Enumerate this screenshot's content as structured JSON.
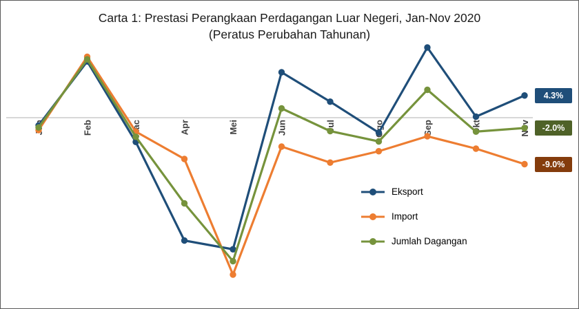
{
  "title": {
    "line1": "Carta 1: Prestasi Perangkaan Perdagangan Luar Negeri, Jan-Nov 2020",
    "line2": "(Peratus Perubahan Tahunan)"
  },
  "legend": {
    "items": [
      {
        "label": "Eksport"
      },
      {
        "label": "Import"
      },
      {
        "label": "Jumlah Dagangan"
      }
    ]
  },
  "end_labels": [
    {
      "text": "4.3%",
      "color": "#1F4E79"
    },
    {
      "text": "-2.0%",
      "color": "#4F6228"
    },
    {
      "text": "-9.0%",
      "color": "#843C0C"
    }
  ],
  "chart_data": {
    "type": "line",
    "title": "Carta 1: Prestasi Perangkaan Perdagangan Luar Negeri, Jan-Nov 2020 (Peratus Perubahan Tahunan)",
    "categories": [
      "Jan",
      "Feb",
      "Mac",
      "Apr",
      "Mei",
      "Jun",
      "Jul",
      "Ogo",
      "Sep",
      "Okt",
      "Nov"
    ],
    "series": [
      {
        "name": "Eksport",
        "color": "#1F4E79",
        "values": [
          -1.5,
          10.9,
          -4.7,
          -23.8,
          -25.5,
          8.8,
          3.1,
          -2.9,
          13.6,
          0.2,
          4.3
        ]
      },
      {
        "name": "Import",
        "color": "#ED7D31",
        "values": [
          -2.4,
          11.8,
          -2.7,
          -8.0,
          -30.4,
          -5.6,
          -8.7,
          -6.5,
          -3.6,
          -6.0,
          -9.0
        ]
      },
      {
        "name": "Jumlah Dagangan",
        "color": "#76933C",
        "values": [
          -1.9,
          11.3,
          -3.7,
          -16.6,
          -27.8,
          1.8,
          -2.6,
          -4.6,
          5.4,
          -2.7,
          -2.0
        ]
      }
    ],
    "xlabel": "",
    "ylabel": "",
    "ylim": [
      -32,
      16
    ],
    "grid": false,
    "legend_position": "inside-right",
    "axis_line_y_value": 0
  }
}
